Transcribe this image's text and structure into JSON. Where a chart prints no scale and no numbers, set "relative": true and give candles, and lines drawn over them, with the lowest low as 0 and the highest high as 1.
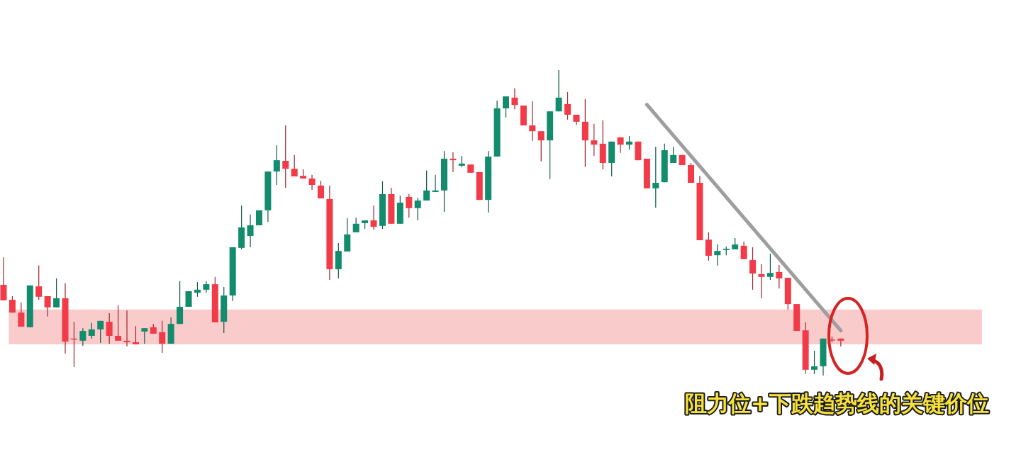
{
  "chart_data": {
    "type": "candlestick",
    "relative": true,
    "categories": [
      null,
      null,
      null,
      null,
      null,
      null,
      null,
      null,
      null,
      null,
      null,
      null,
      null,
      null,
      null,
      null,
      null,
      null,
      null,
      null,
      null,
      null,
      null,
      null,
      null,
      null,
      null,
      null,
      null,
      null,
      null,
      null,
      null,
      null,
      null,
      null,
      null,
      null,
      null,
      null,
      null,
      null,
      null,
      null,
      null,
      null,
      null,
      null,
      null,
      null,
      null,
      null,
      null,
      null,
      null,
      null,
      null,
      null,
      null,
      null,
      null,
      null,
      null,
      null,
      null,
      null,
      null,
      null,
      null,
      null,
      null,
      null,
      null,
      null,
      null,
      null,
      null,
      null,
      null,
      null,
      null,
      null,
      null,
      null,
      null,
      null,
      null,
      null,
      null,
      null,
      null,
      null,
      null,
      null,
      null,
      null
    ],
    "ohlc": [
      [
        0.297,
        0.387,
        0.246,
        0.246
      ],
      [
        0.248,
        0.26,
        0.206,
        0.206
      ],
      [
        0.206,
        0.239,
        0.16,
        0.16
      ],
      [
        0.158,
        0.295,
        0.158,
        0.295
      ],
      [
        0.292,
        0.36,
        0.248,
        0.258
      ],
      [
        0.26,
        0.26,
        0.193,
        0.223
      ],
      [
        0.223,
        0.318,
        0.223,
        0.253
      ],
      [
        0.253,
        0.302,
        0.072,
        0.111
      ],
      [
        0.121,
        0.176,
        0.028,
        0.118
      ],
      [
        0.114,
        0.155,
        0.097,
        0.146
      ],
      [
        0.13,
        0.172,
        0.121,
        0.151
      ],
      [
        0.151,
        0.179,
        0.107,
        0.179
      ],
      [
        0.176,
        0.204,
        0.104,
        0.13
      ],
      [
        0.13,
        0.23,
        0.114,
        0.114
      ],
      [
        0.114,
        0.213,
        0.095,
        0.109
      ],
      [
        0.109,
        0.162,
        0.102,
        0.102
      ],
      [
        0.144,
        0.155,
        0.104,
        0.155
      ],
      [
        0.158,
        0.169,
        0.137,
        0.137
      ],
      [
        0.142,
        0.179,
        0.074,
        0.104
      ],
      [
        0.104,
        0.19,
        0.104,
        0.169
      ],
      [
        0.169,
        0.309,
        0.169,
        0.225
      ],
      [
        0.225,
        0.276,
        0.225,
        0.276
      ],
      [
        0.271,
        0.306,
        0.258,
        0.281
      ],
      [
        0.281,
        0.309,
        0.271,
        0.299
      ],
      [
        0.299,
        0.323,
        0.174,
        0.174
      ],
      [
        0.176,
        0.29,
        0.139,
        0.262
      ],
      [
        0.262,
        0.42,
        0.244,
        0.42
      ],
      [
        0.418,
        0.557,
        0.413,
        0.485
      ],
      [
        0.457,
        0.527,
        0.42,
        0.492
      ],
      [
        0.492,
        0.541,
        0.492,
        0.541
      ],
      [
        0.541,
        0.668,
        0.503,
        0.668
      ],
      [
        0.668,
        0.754,
        0.624,
        0.705
      ],
      [
        0.703,
        0.819,
        0.615,
        0.677
      ],
      [
        0.677,
        0.722,
        0.652,
        0.652
      ],
      [
        0.654,
        0.675,
        0.645,
        0.645
      ],
      [
        0.645,
        0.657,
        0.608,
        0.624
      ],
      [
        0.622,
        0.638,
        0.58,
        0.58
      ],
      [
        0.578,
        0.622,
        0.313,
        0.348
      ],
      [
        0.348,
        0.434,
        0.318,
        0.408
      ],
      [
        0.406,
        0.515,
        0.406,
        0.462
      ],
      [
        0.469,
        0.517,
        0.469,
        0.497
      ],
      [
        0.499,
        0.508,
        0.48,
        0.508
      ],
      [
        0.508,
        0.557,
        0.478,
        0.487
      ],
      [
        0.49,
        0.636,
        0.48,
        0.594
      ],
      [
        0.594,
        0.615,
        0.497,
        0.497
      ],
      [
        0.497,
        0.589,
        0.497,
        0.566
      ],
      [
        0.585,
        0.594,
        0.517,
        0.548
      ],
      [
        0.548,
        0.582,
        0.508,
        0.573
      ],
      [
        0.573,
        0.671,
        0.573,
        0.606
      ],
      [
        0.601,
        0.657,
        0.601,
        0.606
      ],
      [
        0.606,
        0.735,
        0.536,
        0.71
      ],
      [
        0.71,
        0.731,
        0.666,
        0.705
      ],
      [
        0.687,
        0.719,
        0.682,
        0.694
      ],
      [
        0.691,
        0.691,
        0.664,
        0.664
      ],
      [
        0.666,
        0.666,
        0.575,
        0.575
      ],
      [
        0.575,
        0.735,
        0.534,
        0.717
      ],
      [
        0.717,
        0.9,
        0.717,
        0.875
      ],
      [
        0.875,
        0.914,
        0.845,
        0.914
      ],
      [
        0.91,
        0.94,
        0.872,
        0.886
      ],
      [
        0.884,
        0.884,
        0.819,
        0.819
      ],
      [
        0.819,
        0.898,
        0.768,
        0.8
      ],
      [
        0.8,
        0.8,
        0.701,
        0.77
      ],
      [
        0.77,
        0.865,
        0.643,
        0.865
      ],
      [
        0.865,
        1,
        0.865,
        0.91
      ],
      [
        0.889,
        0.928,
        0.838,
        0.854
      ],
      [
        0.854,
        0.854,
        0.821,
        0.831
      ],
      [
        0.831,
        0.905,
        0.684,
        0.77
      ],
      [
        0.77,
        0.824,
        0.719,
        0.756
      ],
      [
        0.759,
        0.835,
        0.675,
        0.696
      ],
      [
        0.696,
        0.766,
        0.652,
        0.766
      ],
      [
        0.78,
        0.78,
        0.729,
        0.756
      ],
      [
        0.756,
        0.784,
        0.74,
        0.766
      ],
      [
        0.766,
        0.766,
        0.705,
        0.705
      ],
      [
        0.71,
        0.71,
        0.613,
        0.613
      ],
      [
        0.613,
        0.749,
        0.55,
        0.631
      ],
      [
        0.633,
        0.759,
        0.633,
        0.738
      ],
      [
        0.696,
        0.749,
        0.696,
        0.722
      ],
      [
        0.722,
        0.722,
        0.689,
        0.689
      ],
      [
        0.689,
        0.696,
        0.631,
        0.631
      ],
      [
        0.631,
        0.654,
        0.443,
        0.443
      ],
      [
        0.445,
        0.469,
        0.376,
        0.392
      ],
      [
        0.394,
        0.429,
        0.36,
        0.408
      ],
      [
        0.411,
        0.422,
        0.394,
        0.415
      ],
      [
        0.413,
        0.45,
        0.413,
        0.429
      ],
      [
        0.425,
        0.439,
        0.381,
        0.381
      ],
      [
        0.378,
        0.42,
        0.281,
        0.334
      ],
      [
        0.332,
        0.364,
        0.253,
        0.323
      ],
      [
        0.323,
        0.399,
        0.313,
        0.336
      ],
      [
        0.339,
        0.362,
        0.285,
        0.318
      ],
      [
        0.32,
        0.32,
        0.216,
        0.234
      ],
      [
        0.234,
        0.234,
        0.146,
        0.146
      ],
      [
        0.148,
        0.174,
        0.005,
        0.019
      ],
      [
        0.019,
        0.081,
        0.005,
        0.03
      ],
      [
        0.03,
        0.121,
        0,
        0.121
      ],
      [
        0.118,
        0.128,
        0.109,
        0.116
      ],
      [
        0.121,
        0.121,
        0.095,
        0.114
      ]
    ],
    "colors": [
      "#f23b48",
      "#f23b48",
      "#f23b48",
      "#128c6c",
      "#f23b48",
      "#f23b48",
      "#128c6c",
      "#f23b48",
      "#f23b48",
      "#128c6c",
      "#128c6c",
      "#128c6c",
      "#f23b48",
      "#f23b48",
      "#f23b48",
      "#f23b48",
      "#128c6c",
      "#f23b48",
      "#f23b48",
      "#128c6c",
      "#128c6c",
      "#128c6c",
      "#128c6c",
      "#128c6c",
      "#f23b48",
      "#128c6c",
      "#128c6c",
      "#128c6c",
      "#128c6c",
      "#128c6c",
      "#128c6c",
      "#128c6c",
      "#f23b48",
      "#f23b48",
      "#f23b48",
      "#f23b48",
      "#f23b48",
      "#f23b48",
      "#128c6c",
      "#128c6c",
      "#128c6c",
      "#128c6c",
      "#f23b48",
      "#128c6c",
      "#f23b48",
      "#128c6c",
      "#f23b48",
      "#128c6c",
      "#128c6c",
      "#128c6c",
      "#128c6c",
      "#f23b48",
      "#128c6c",
      "#f23b48",
      "#f23b48",
      "#128c6c",
      "#128c6c",
      "#128c6c",
      "#f23b48",
      "#f23b48",
      "#f23b48",
      "#f23b48",
      "#128c6c",
      "#128c6c",
      "#f23b48",
      "#f23b48",
      "#f23b48",
      "#f23b48",
      "#f23b48",
      "#128c6c",
      "#f23b48",
      "#128c6c",
      "#f23b48",
      "#f23b48",
      "#128c6c",
      "#128c6c",
      "#128c6c",
      "#f23b48",
      "#f23b48",
      "#f23b48",
      "#f23b48",
      "#128c6c",
      "#128c6c",
      "#128c6c",
      "#f23b48",
      "#f23b48",
      "#f23b48",
      "#128c6c",
      "#f23b48",
      "#f23b48",
      "#f23b48",
      "#f23b48",
      "#128c6c",
      "#128c6c",
      "#f23b48",
      "#f23b48"
    ],
    "series": [
      {
        "type": "line",
        "color": "#9e9e9e",
        "values": [
          null,
          null,
          null,
          null,
          null,
          null,
          null,
          null,
          null,
          null,
          null,
          null,
          null,
          null,
          null,
          null,
          null,
          null,
          null,
          null,
          null,
          null,
          null,
          null,
          null,
          null,
          null,
          null,
          null,
          null,
          null,
          null,
          null,
          null,
          null,
          null,
          null,
          null,
          null,
          null,
          null,
          null,
          null,
          null,
          null,
          null,
          null,
          null,
          null,
          null,
          null,
          null,
          null,
          null,
          null,
          null,
          null,
          null,
          null,
          null,
          null,
          null,
          null,
          null,
          null,
          null,
          null,
          null,
          null,
          null,
          null,
          null,
          null,
          0.887,
          null,
          null,
          null,
          null,
          null,
          null,
          null,
          null,
          null,
          null,
          null,
          null,
          null,
          null,
          null,
          null,
          null,
          null,
          null,
          null,
          null,
          0.147
        ]
      }
    ],
    "bands": [
      {
        "axis": "y",
        "from": 0.102,
        "to": 0.216,
        "color": "#fac8c8"
      }
    ],
    "annotations": [
      "阻力位+下跌趋势线的关键价位"
    ]
  }
}
